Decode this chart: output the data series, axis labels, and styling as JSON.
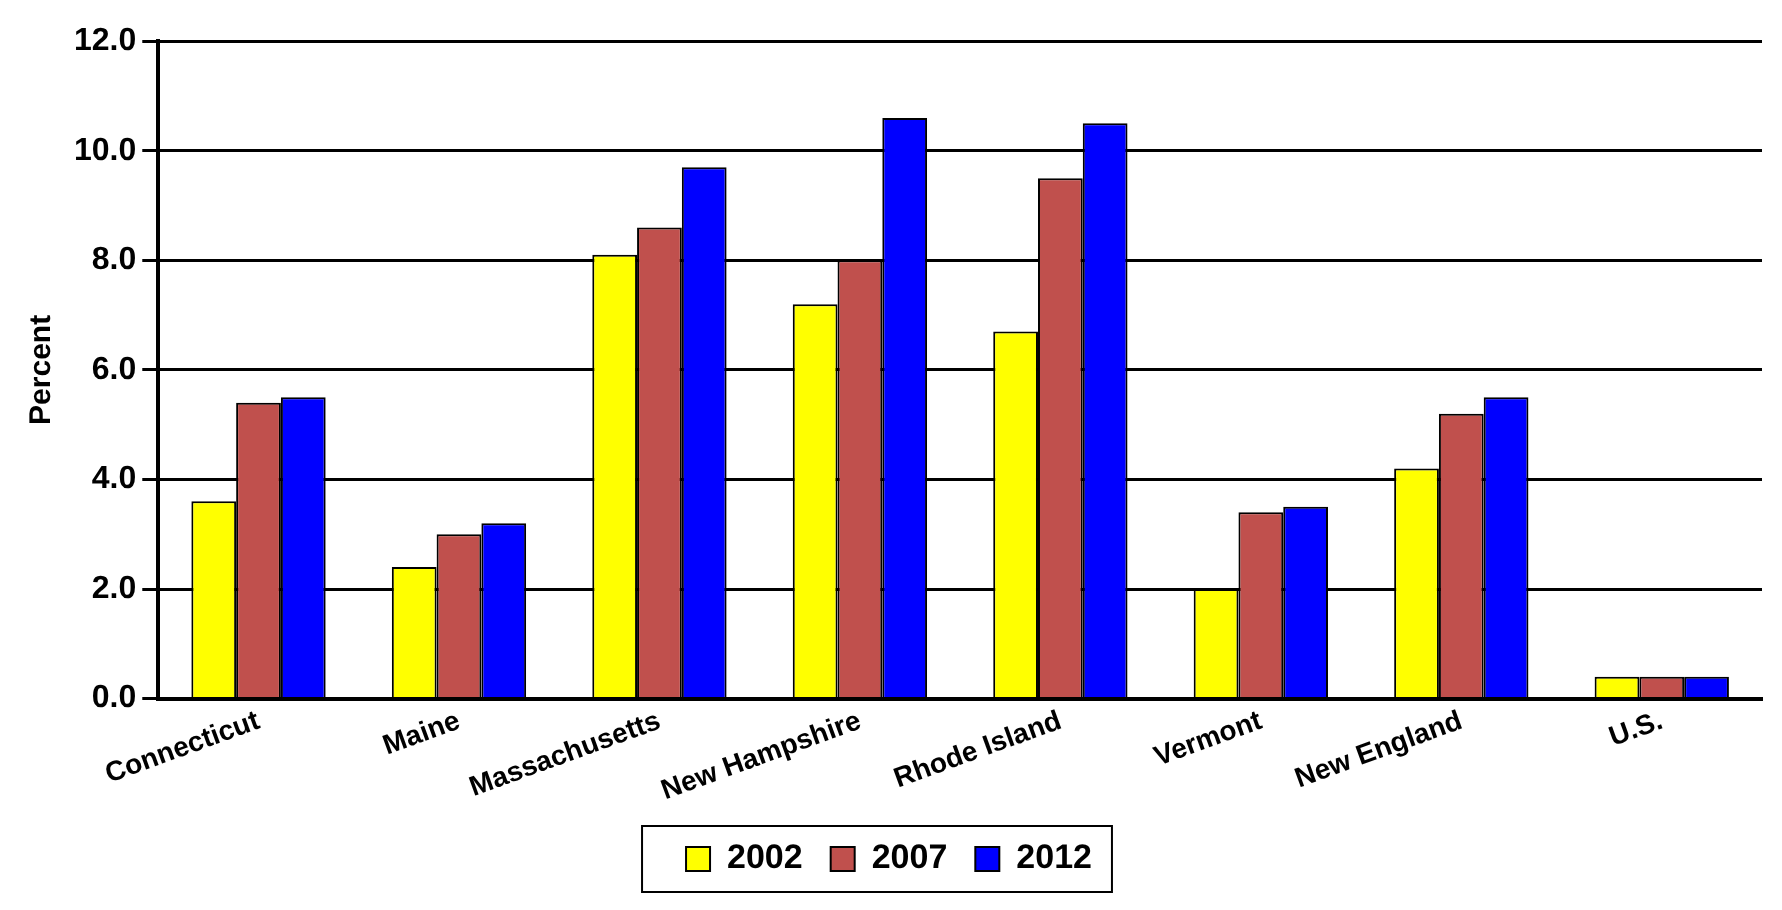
{
  "chart_data": {
    "type": "bar",
    "ylabel": "Percent",
    "categories": [
      "Connecticut",
      "Maine",
      "Massachusetts",
      "New Hampshire",
      "Rhode Island",
      "Vermont",
      "New England",
      "U.S."
    ],
    "series": [
      {
        "name": "2002",
        "color": "#ffff00",
        "values": [
          3.6,
          2.4,
          8.1,
          7.2,
          6.7,
          2.0,
          4.2,
          0.4
        ]
      },
      {
        "name": "2007",
        "color": "#c0504d",
        "values": [
          5.4,
          3.0,
          8.6,
          8.0,
          9.5,
          3.4,
          5.2,
          0.4
        ]
      },
      {
        "name": "2012",
        "color": "#0000ff",
        "values": [
          5.5,
          3.2,
          9.7,
          10.6,
          10.5,
          3.5,
          5.5,
          0.4
        ]
      }
    ],
    "ylim": [
      0,
      12
    ],
    "yticks": [
      {
        "value": 0,
        "label": "0.0"
      },
      {
        "value": 2,
        "label": "2.0"
      },
      {
        "value": 4,
        "label": "4.0"
      },
      {
        "value": 6,
        "label": "6.0"
      },
      {
        "value": 8,
        "label": "8.0"
      },
      {
        "value": 10,
        "label": "10.0"
      },
      {
        "value": 12,
        "label": "12.0"
      }
    ],
    "grid": "y",
    "legend": "bottom"
  }
}
